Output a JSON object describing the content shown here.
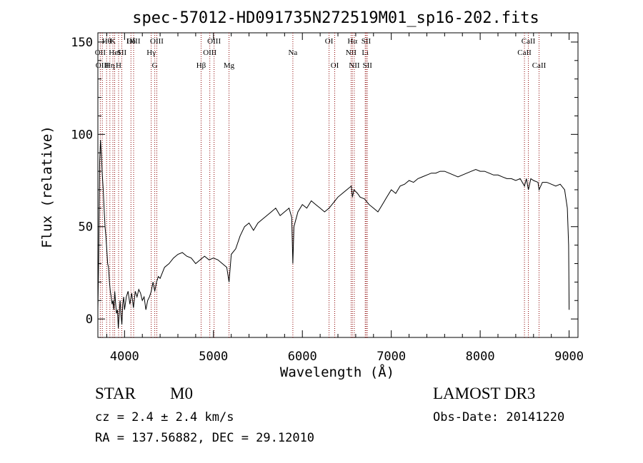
{
  "chart_data": {
    "type": "line",
    "title": "spec-57012-HD091735N272519M01_sp16-202.fits",
    "xlabel": "Wavelength (Å)",
    "ylabel": "Flux (relative)",
    "xlim": [
      3700,
      9100
    ],
    "ylim": [
      -10,
      155
    ],
    "x_ticks": [
      4000,
      5000,
      6000,
      7000,
      8000,
      9000
    ],
    "y_ticks": [
      0,
      50,
      100,
      150
    ],
    "series": [
      {
        "name": "flux",
        "points": [
          [
            3700,
            5
          ],
          [
            3710,
            35
          ],
          [
            3720,
            85
          ],
          [
            3730,
            97
          ],
          [
            3740,
            88
          ],
          [
            3750,
            78
          ],
          [
            3760,
            70
          ],
          [
            3770,
            60
          ],
          [
            3780,
            50
          ],
          [
            3790,
            45
          ],
          [
            3800,
            38
          ],
          [
            3810,
            30
          ],
          [
            3820,
            28
          ],
          [
            3830,
            20
          ],
          [
            3840,
            15
          ],
          [
            3850,
            12
          ],
          [
            3860,
            8
          ],
          [
            3870,
            10
          ],
          [
            3880,
            5
          ],
          [
            3890,
            15
          ],
          [
            3900,
            8
          ],
          [
            3910,
            3
          ],
          [
            3920,
            5
          ],
          [
            3930,
            -5
          ],
          [
            3940,
            3
          ],
          [
            3950,
            10
          ],
          [
            3960,
            2
          ],
          [
            3970,
            -3
          ],
          [
            3980,
            8
          ],
          [
            3990,
            12
          ],
          [
            4000,
            5
          ],
          [
            4020,
            12
          ],
          [
            4040,
            15
          ],
          [
            4060,
            8
          ],
          [
            4080,
            14
          ],
          [
            4100,
            6
          ],
          [
            4120,
            15
          ],
          [
            4140,
            12
          ],
          [
            4160,
            16
          ],
          [
            4180,
            14
          ],
          [
            4200,
            10
          ],
          [
            4220,
            12
          ],
          [
            4240,
            5
          ],
          [
            4260,
            10
          ],
          [
            4280,
            12
          ],
          [
            4300,
            15
          ],
          [
            4320,
            20
          ],
          [
            4340,
            15
          ],
          [
            4360,
            20
          ],
          [
            4380,
            23
          ],
          [
            4400,
            22
          ],
          [
            4450,
            28
          ],
          [
            4500,
            30
          ],
          [
            4550,
            33
          ],
          [
            4600,
            35
          ],
          [
            4650,
            36
          ],
          [
            4700,
            34
          ],
          [
            4750,
            33
          ],
          [
            4800,
            30
          ],
          [
            4850,
            32
          ],
          [
            4900,
            34
          ],
          [
            4950,
            32
          ],
          [
            5000,
            33
          ],
          [
            5050,
            32
          ],
          [
            5100,
            30
          ],
          [
            5150,
            28
          ],
          [
            5175,
            20
          ],
          [
            5200,
            35
          ],
          [
            5250,
            38
          ],
          [
            5300,
            45
          ],
          [
            5350,
            50
          ],
          [
            5400,
            52
          ],
          [
            5450,
            48
          ],
          [
            5500,
            52
          ],
          [
            5550,
            54
          ],
          [
            5600,
            56
          ],
          [
            5650,
            58
          ],
          [
            5700,
            60
          ],
          [
            5750,
            56
          ],
          [
            5800,
            58
          ],
          [
            5850,
            60
          ],
          [
            5880,
            55
          ],
          [
            5893,
            30
          ],
          [
            5905,
            50
          ],
          [
            5950,
            58
          ],
          [
            6000,
            62
          ],
          [
            6050,
            60
          ],
          [
            6100,
            64
          ],
          [
            6150,
            62
          ],
          [
            6200,
            60
          ],
          [
            6250,
            58
          ],
          [
            6300,
            60
          ],
          [
            6350,
            63
          ],
          [
            6400,
            66
          ],
          [
            6450,
            68
          ],
          [
            6500,
            70
          ],
          [
            6550,
            72
          ],
          [
            6563,
            66
          ],
          [
            6580,
            70
          ],
          [
            6620,
            68
          ],
          [
            6650,
            66
          ],
          [
            6700,
            65
          ],
          [
            6750,
            62
          ],
          [
            6800,
            60
          ],
          [
            6850,
            58
          ],
          [
            6900,
            62
          ],
          [
            6950,
            66
          ],
          [
            7000,
            70
          ],
          [
            7050,
            68
          ],
          [
            7100,
            72
          ],
          [
            7150,
            73
          ],
          [
            7200,
            75
          ],
          [
            7250,
            74
          ],
          [
            7300,
            76
          ],
          [
            7350,
            77
          ],
          [
            7400,
            78
          ],
          [
            7450,
            79
          ],
          [
            7500,
            79
          ],
          [
            7550,
            80
          ],
          [
            7600,
            80
          ],
          [
            7650,
            79
          ],
          [
            7700,
            78
          ],
          [
            7750,
            77
          ],
          [
            7800,
            78
          ],
          [
            7850,
            79
          ],
          [
            7900,
            80
          ],
          [
            7950,
            81
          ],
          [
            8000,
            80
          ],
          [
            8050,
            80
          ],
          [
            8100,
            79
          ],
          [
            8150,
            78
          ],
          [
            8200,
            78
          ],
          [
            8250,
            77
          ],
          [
            8300,
            76
          ],
          [
            8350,
            76
          ],
          [
            8400,
            75
          ],
          [
            8450,
            76
          ],
          [
            8498,
            72
          ],
          [
            8520,
            76
          ],
          [
            8542,
            70
          ],
          [
            8570,
            76
          ],
          [
            8600,
            75
          ],
          [
            8650,
            74
          ],
          [
            8662,
            70
          ],
          [
            8700,
            74
          ],
          [
            8750,
            74
          ],
          [
            8800,
            73
          ],
          [
            8850,
            72
          ],
          [
            8900,
            73
          ],
          [
            8950,
            70
          ],
          [
            8980,
            60
          ],
          [
            8995,
            40
          ],
          [
            9000,
            5
          ]
        ]
      }
    ],
    "line_markers": [
      {
        "wave": 3727,
        "label": "OII",
        "row": 2
      },
      {
        "wave": 3750,
        "label": "OIII",
        "row": 3
      },
      {
        "wave": 3798,
        "label": "Hθ",
        "row": 1
      },
      {
        "wave": 3835,
        "label": "Hη",
        "row": 3
      },
      {
        "wave": 3869,
        "label": "K",
        "row": 1
      },
      {
        "wave": 3889,
        "label": "HeI",
        "row": 2
      },
      {
        "wave": 3933,
        "label": "H",
        "row": 3
      },
      {
        "wave": 3969,
        "label": "SII",
        "row": 2
      },
      {
        "wave": 4072,
        "label": "Hδ",
        "row": 1
      },
      {
        "wave": 4102,
        "label": "OIII",
        "row": 1
      },
      {
        "wave": 4300,
        "label": "Hγ",
        "row": 2
      },
      {
        "wave": 4340,
        "label": "G",
        "row": 3
      },
      {
        "wave": 4363,
        "label": "OIII",
        "row": 1
      },
      {
        "wave": 4861,
        "label": "Hβ",
        "row": 3
      },
      {
        "wave": 4959,
        "label": "OIII",
        "row": 2
      },
      {
        "wave": 5007,
        "label": "OIII",
        "row": 1
      },
      {
        "wave": 5175,
        "label": "Mg",
        "row": 3
      },
      {
        "wave": 5893,
        "label": "Na",
        "row": 2
      },
      {
        "wave": 6300,
        "label": "OI",
        "row": 1
      },
      {
        "wave": 6364,
        "label": "OI",
        "row": 3
      },
      {
        "wave": 6548,
        "label": "NII",
        "row": 2
      },
      {
        "wave": 6563,
        "label": "Hα",
        "row": 1
      },
      {
        "wave": 6584,
        "label": "NII",
        "row": 3
      },
      {
        "wave": 6707,
        "label": "Li",
        "row": 2
      },
      {
        "wave": 6717,
        "label": "SII",
        "row": 1
      },
      {
        "wave": 6731,
        "label": "SII",
        "row": 3
      },
      {
        "wave": 8498,
        "label": "CaII",
        "row": 2
      },
      {
        "wave": 8542,
        "label": "CaII",
        "row": 1
      },
      {
        "wave": 8662,
        "label": "CaII",
        "row": 3
      }
    ]
  },
  "info": {
    "object_class": "STAR",
    "subclass": "M0",
    "cz": "cz = 2.4 ± 2.4 km/s",
    "coords": "RA = 137.56882, DEC =  29.12010",
    "survey": "LAMOST DR3",
    "obs_date": "Obs-Date: 20141220"
  },
  "colors": {
    "line": "#000000",
    "marker": "#8b0000",
    "background": "#ffffff"
  }
}
